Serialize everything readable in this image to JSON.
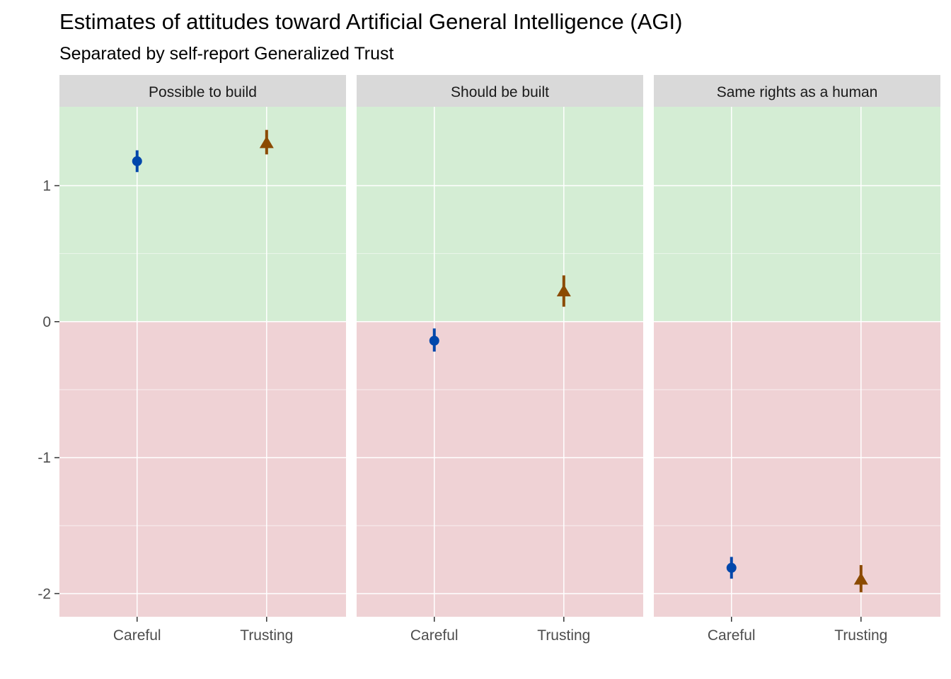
{
  "chart_data": {
    "type": "scatter",
    "title": "Estimates of attitudes toward Artificial General Intelligence (AGI)",
    "subtitle": "Separated by self-report Generalized Trust",
    "facet_note": "three facet panels sharing a y axis",
    "facets": [
      "Possible to build",
      "Should be built",
      "Same rights as a human"
    ],
    "categories": [
      "Careful",
      "Trusting"
    ],
    "ylim": [
      -2.17,
      1.58
    ],
    "yticks": [
      -2,
      -1,
      0,
      1
    ],
    "ytick_labels": [
      "-2",
      "-1",
      "0",
      "1"
    ],
    "grid": true,
    "background_bands": [
      {
        "from": 0,
        "to": 1.58,
        "color": "#d4edd4"
      },
      {
        "from": -2.17,
        "to": 0,
        "color": "#efd2d5"
      }
    ],
    "series": [
      {
        "category": "Careful",
        "marker": "circle",
        "color": "#0047ab",
        "points": [
          {
            "facet": "Possible to build",
            "estimate": 1.18,
            "low": 1.1,
            "high": 1.26
          },
          {
            "facet": "Should be built",
            "estimate": -0.14,
            "low": -0.22,
            "high": -0.05
          },
          {
            "facet": "Same rights as a human",
            "estimate": -1.81,
            "low": -1.89,
            "high": -1.73
          }
        ]
      },
      {
        "category": "Trusting",
        "marker": "triangle",
        "color": "#8b4a00",
        "points": [
          {
            "facet": "Possible to build",
            "estimate": 1.31,
            "low": 1.23,
            "high": 1.41
          },
          {
            "facet": "Should be built",
            "estimate": 0.22,
            "low": 0.11,
            "high": 0.34
          },
          {
            "facet": "Same rights as a human",
            "estimate": -1.9,
            "low": -1.99,
            "high": -1.79
          }
        ]
      }
    ],
    "colors": {
      "strip_bg": "#d9d9d9",
      "grid_major": "#ffffff",
      "axis_tick": "#333333"
    }
  }
}
